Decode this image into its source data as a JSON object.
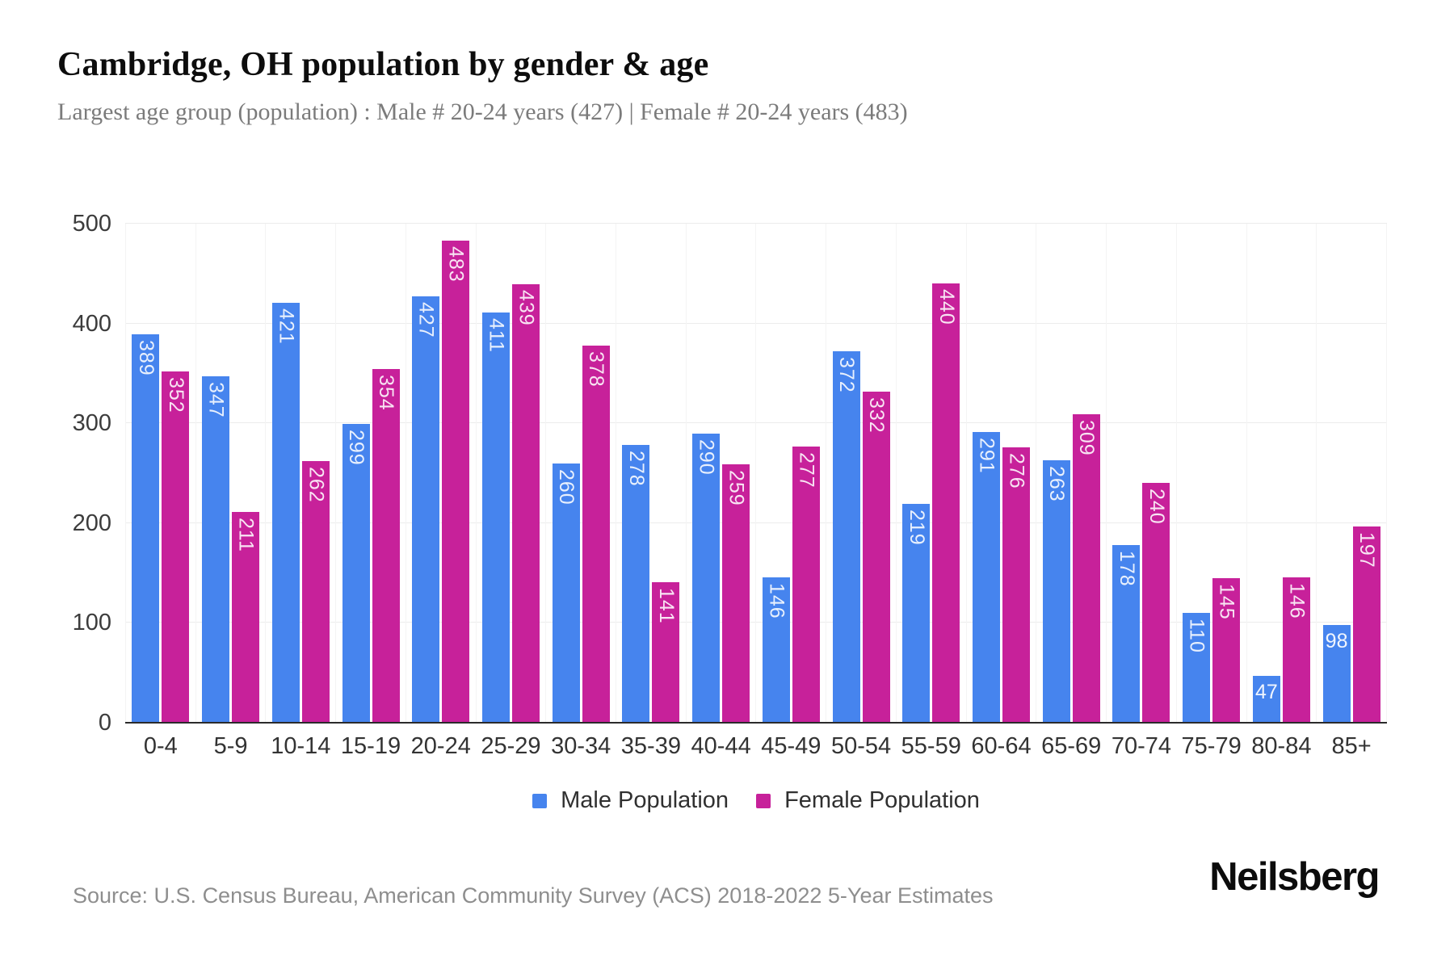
{
  "header": {
    "title": "Cambridge, OH population by gender & age",
    "subtitle": "Largest age group (population) : Male # 20-24 years (427) | Female # 20-24 years (483)"
  },
  "chart_data": {
    "type": "bar",
    "title": "Cambridge, OH population by gender & age",
    "categories": [
      "0-4",
      "5-9",
      "10-14",
      "15-19",
      "20-24",
      "25-29",
      "30-34",
      "35-39",
      "40-44",
      "45-49",
      "50-54",
      "55-59",
      "60-64",
      "65-69",
      "70-74",
      "75-79",
      "80-84",
      "85+"
    ],
    "series": [
      {
        "name": "Male Population",
        "color": "#4684ee",
        "values": [
          389,
          347,
          421,
          299,
          427,
          411,
          260,
          278,
          290,
          146,
          372,
          219,
          291,
          263,
          178,
          110,
          47,
          98
        ]
      },
      {
        "name": "Female Population",
        "color": "#c7219a",
        "values": [
          352,
          211,
          262,
          354,
          483,
          439,
          378,
          141,
          259,
          277,
          332,
          440,
          276,
          309,
          240,
          145,
          146,
          197
        ]
      }
    ],
    "xlabel": "",
    "ylabel": "",
    "ylim": [
      0,
      500
    ],
    "yticks": [
      0,
      100,
      200,
      300,
      400,
      500
    ],
    "grid": "horizontal",
    "legend_position": "bottom",
    "bar_value_labels": "inside-top, rotated 90deg for 3-digit values, horizontal for 2-digit"
  },
  "legend": {
    "items": [
      {
        "label": "Male Population",
        "color": "#4684ee"
      },
      {
        "label": "Female Population",
        "color": "#c7219a"
      }
    ]
  },
  "footer": {
    "source": "Source: U.S. Census Bureau, American Community Survey (ACS) 2018-2022 5-Year Estimates",
    "brand": "Neilsberg"
  }
}
